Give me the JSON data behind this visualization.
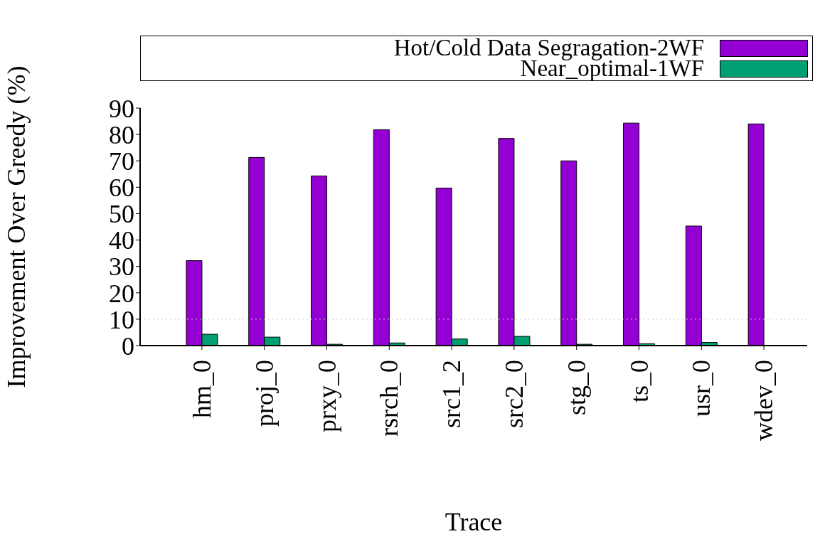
{
  "chart_data": {
    "type": "bar",
    "xlabel": "Trace",
    "ylabel": "Improvement Over Greedy (%)",
    "categories": [
      "hm_0",
      "proj_0",
      "prxy_0",
      "rsrch_0",
      "src1_2",
      "src2_0",
      "stg_0",
      "ts_0",
      "usr_0",
      "wdev_0"
    ],
    "series": [
      {
        "name": "Hot/Cold Data Segragation-2WF",
        "color": "#9400d3",
        "values": [
          32.2,
          71.3,
          64.3,
          81.8,
          59.7,
          78.5,
          70,
          84.3,
          45.3,
          84
        ]
      },
      {
        "name": "Near_optimal-1WF",
        "color": "#009e73",
        "values": [
          4.3,
          3.2,
          0.5,
          1,
          2.5,
          3.5,
          0.5,
          0.7,
          1.2,
          0.1
        ]
      }
    ],
    "ylim": [
      0,
      90
    ],
    "yticks": [
      0,
      10,
      20,
      30,
      40,
      50,
      60,
      70,
      80,
      90
    ],
    "ref_lines": [
      {
        "axis": "y",
        "value": 10,
        "color": "#c8c8c8",
        "line_style": "dotted"
      }
    ],
    "legend": "top",
    "grid": false
  }
}
